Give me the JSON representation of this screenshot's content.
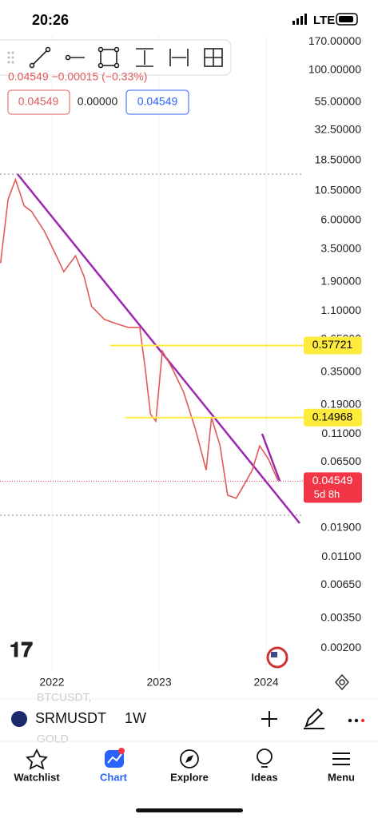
{
  "status_bar": {
    "time": "20:26",
    "network": "LTE"
  },
  "legend": {
    "quote": "0.04549 −0.00015 (−0.33%)",
    "bid": "0.04549",
    "spread": "0.00000",
    "ask": "0.04549"
  },
  "chart_data": {
    "type": "line",
    "log_scale": true,
    "color": "#e05a5a",
    "x": [
      2021.52,
      2021.59,
      2021.66,
      2021.74,
      2021.81,
      2021.93,
      2022.04,
      2022.11,
      2022.22,
      2022.3,
      2022.37,
      2022.49,
      2022.6,
      2022.71,
      2022.82,
      2022.87,
      2022.92,
      2022.97,
      2023.03,
      2023.12,
      2023.23,
      2023.34,
      2023.44,
      2023.49,
      2023.57,
      2023.64,
      2023.72,
      2023.79,
      2023.87,
      2023.94,
      2024.02,
      2024.11
    ],
    "values": [
      2.7,
      8.9,
      12.9,
      7.9,
      7.1,
      4.9,
      3.1,
      2.3,
      3.1,
      2.1,
      1.2,
      0.94,
      0.87,
      0.81,
      0.81,
      0.38,
      0.16,
      0.14,
      0.52,
      0.38,
      0.24,
      0.12,
      0.056,
      0.15,
      0.088,
      0.035,
      0.033,
      0.042,
      0.056,
      0.088,
      0.069,
      0.046
    ],
    "xlim": [
      2021.515,
      2024.35
    ],
    "xticks": [
      2022,
      2023,
      2024
    ],
    "ylim": [
      0.0013,
      190
    ],
    "yticks": [
      {
        "value": 170,
        "label": "170.00000"
      },
      {
        "value": 100,
        "label": "100.00000"
      },
      {
        "value": 55,
        "label": "55.00000"
      },
      {
        "value": 32.5,
        "label": "32.50000"
      },
      {
        "value": 18.5,
        "label": "18.50000"
      },
      {
        "value": 10.5,
        "label": "10.50000"
      },
      {
        "value": 6,
        "label": "6.00000"
      },
      {
        "value": 3.5,
        "label": "3.50000"
      },
      {
        "value": 1.9,
        "label": "1.90000"
      },
      {
        "value": 1.1,
        "label": "1.10000"
      },
      {
        "value": 0.65,
        "label": "0.65000"
      },
      {
        "value": 0.35,
        "label": "0.35000"
      },
      {
        "value": 0.19,
        "label": "0.19000"
      },
      {
        "value": 0.11,
        "label": "0.11000"
      },
      {
        "value": 0.065,
        "label": "0.06500"
      },
      {
        "value": 0.019,
        "label": "0.01900"
      },
      {
        "value": 0.011,
        "label": "0.01100"
      },
      {
        "value": 0.0065,
        "label": "0.00650"
      },
      {
        "value": 0.0035,
        "label": "0.00350"
      },
      {
        "value": 0.002,
        "label": "0.00200"
      }
    ],
    "levels": [
      {
        "value": 0.57721,
        "label": "0.57721",
        "color": "#ffeb3b"
      },
      {
        "value": 0.14968,
        "label": "0.14968",
        "color": "#ffeb3b"
      }
    ],
    "last_price": {
      "value": 0.04549,
      "label": "0.04549",
      "countdown": "5d 8h",
      "color": "#f23645"
    }
  },
  "symbol_bar": {
    "symbol": "SRMUSDT",
    "interval": "1W",
    "ghost_above": "BTCUSDT,",
    "ghost_below": "GOLD"
  },
  "nav": [
    "Watchlist",
    "Chart",
    "Explore",
    "Ideas",
    "Menu"
  ]
}
